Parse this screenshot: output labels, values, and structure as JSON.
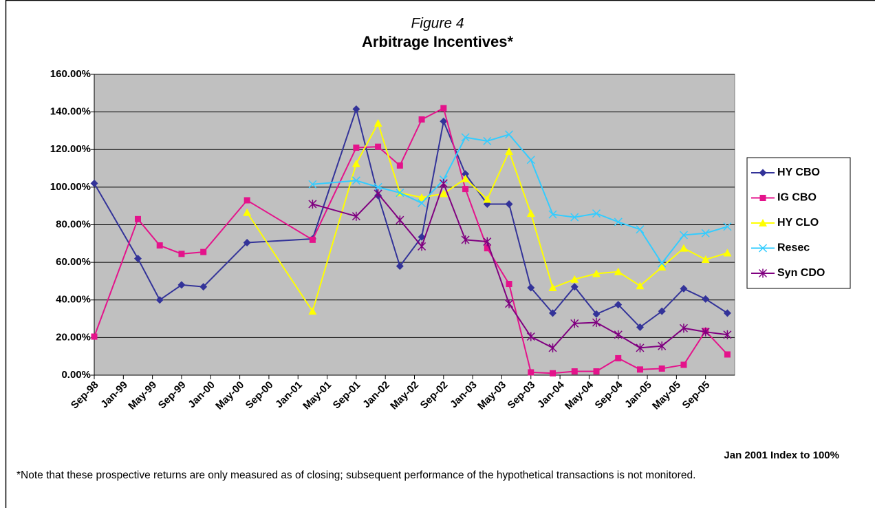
{
  "chart_data": {
    "type": "line",
    "figure_label": "Figure 4",
    "title": "Arbitrage Incentives*",
    "index_note": "Jan 2001 Index to 100%",
    "footnote": "*Note that these prospective returns are only measured as of closing; subsequent performance of the hypothetical transactions is not monitored.",
    "xlim": [
      "1998-09",
      "2006-01"
    ],
    "xticks": [
      {
        "value": "1998-09",
        "label": "Sep-98"
      },
      {
        "value": "1999-01",
        "label": "Jan-99"
      },
      {
        "value": "1999-05",
        "label": "May-99"
      },
      {
        "value": "1999-09",
        "label": "Sep-99"
      },
      {
        "value": "2000-01",
        "label": "Jan-00"
      },
      {
        "value": "2000-05",
        "label": "May-00"
      },
      {
        "value": "2000-09",
        "label": "Sep-00"
      },
      {
        "value": "2001-01",
        "label": "Jan-01"
      },
      {
        "value": "2001-05",
        "label": "May-01"
      },
      {
        "value": "2001-09",
        "label": "Sep-01"
      },
      {
        "value": "2002-01",
        "label": "Jan-02"
      },
      {
        "value": "2002-05",
        "label": "May-02"
      },
      {
        "value": "2002-09",
        "label": "Sep-02"
      },
      {
        "value": "2003-01",
        "label": "Jan-03"
      },
      {
        "value": "2003-05",
        "label": "May-03"
      },
      {
        "value": "2003-09",
        "label": "Sep-03"
      },
      {
        "value": "2004-01",
        "label": "Jan-04"
      },
      {
        "value": "2004-05",
        "label": "May-04"
      },
      {
        "value": "2004-09",
        "label": "Sep-04"
      },
      {
        "value": "2005-01",
        "label": "Jan-05"
      },
      {
        "value": "2005-05",
        "label": "May-05"
      },
      {
        "value": "2005-09",
        "label": "Sep-05"
      }
    ],
    "ylim": [
      0,
      160
    ],
    "yticks": [
      {
        "value": 0,
        "label": "0.00%"
      },
      {
        "value": 20,
        "label": "20.00%"
      },
      {
        "value": 40,
        "label": "40.00%"
      },
      {
        "value": 60,
        "label": "60.00%"
      },
      {
        "value": 80,
        "label": "80.00%"
      },
      {
        "value": 100,
        "label": "100.00%"
      },
      {
        "value": 120,
        "label": "120.00%"
      },
      {
        "value": 140,
        "label": "140.00%"
      },
      {
        "value": 160,
        "label": "160.00%"
      }
    ],
    "grid": true,
    "legend": "right",
    "series": [
      {
        "name": "HY CBO",
        "color": "#333399",
        "marker": "diamond",
        "x": [
          "1998-09",
          "1999-03",
          "1999-06",
          "1999-09",
          "1999-12",
          "2000-06",
          "2001-03",
          "2001-09",
          "2001-12",
          "2002-03",
          "2002-06",
          "2002-09",
          "2002-12",
          "2003-03",
          "2003-06",
          "2003-09",
          "2003-12",
          "2004-03",
          "2004-06",
          "2004-09",
          "2004-12",
          "2005-03",
          "2005-06",
          "2005-09",
          "2005-12"
        ],
        "values": [
          102,
          62,
          40,
          48,
          47,
          70.5,
          72.5,
          141.5,
          95.5,
          58,
          73.5,
          135,
          107,
          91,
          91,
          46.5,
          33,
          47,
          32.5,
          37.5,
          25.5,
          34,
          46,
          40.5,
          33
        ]
      },
      {
        "name": "IG CBO",
        "color": "#e4138b",
        "marker": "square",
        "x": [
          "1998-09",
          "1999-03",
          "1999-06",
          "1999-09",
          "1999-12",
          "2000-06",
          "2001-03",
          "2001-09",
          "2001-12",
          "2002-03",
          "2002-06",
          "2002-09",
          "2002-12",
          "2003-03",
          "2003-06",
          "2003-09",
          "2003-12",
          "2004-03",
          "2004-06",
          "2004-09",
          "2004-12",
          "2005-03",
          "2005-06",
          "2005-09",
          "2005-12"
        ],
        "values": [
          20.5,
          83,
          69,
          64.5,
          65.5,
          93,
          72,
          121,
          121.5,
          111.5,
          136,
          142,
          99,
          67.5,
          48.5,
          1.5,
          1,
          2,
          2,
          9,
          3,
          3.5,
          5.5,
          23.5,
          11
        ]
      },
      {
        "name": "HY CLO",
        "color": "#ffff00",
        "marker": "triangle",
        "x": [
          "2000-06",
          "2001-03",
          "2001-09",
          "2001-12",
          "2002-03",
          "2002-06",
          "2002-09",
          "2002-12",
          "2003-03",
          "2003-06",
          "2003-09",
          "2003-12",
          "2004-03",
          "2004-06",
          "2004-09",
          "2004-12",
          "2005-03",
          "2005-06",
          "2005-09",
          "2005-12"
        ],
        "values": [
          86.5,
          34,
          112.5,
          134,
          97,
          94.5,
          96.5,
          104.5,
          93.5,
          119,
          86,
          46.5,
          51,
          54,
          55,
          47.5,
          57.5,
          67.5,
          61.5,
          65
        ]
      },
      {
        "name": "Resec",
        "color": "#33ccff",
        "marker": "x",
        "x": [
          "2001-03",
          "2001-09",
          "2001-12",
          "2002-03",
          "2002-06",
          "2002-09",
          "2002-12",
          "2003-03",
          "2003-06",
          "2003-09",
          "2003-12",
          "2004-03",
          "2004-06",
          "2004-09",
          "2004-12",
          "2005-03",
          "2005-06",
          "2005-09",
          "2005-12"
        ],
        "values": [
          101.5,
          103.5,
          100,
          97,
          91.5,
          104,
          126.5,
          124.5,
          128,
          114.5,
          85.5,
          84,
          86,
          81.5,
          77.5,
          59.5,
          74.5,
          75.5,
          79
        ]
      },
      {
        "name": "Syn CDO",
        "color": "#800080",
        "marker": "star",
        "x": [
          "2001-03",
          "2001-09",
          "2001-12",
          "2002-03",
          "2002-06",
          "2002-09",
          "2002-12",
          "2003-03",
          "2003-06",
          "2003-09",
          "2003-12",
          "2004-03",
          "2004-06",
          "2004-09",
          "2004-12",
          "2005-03",
          "2005-06",
          "2005-09",
          "2005-12"
        ],
        "values": [
          91,
          84.5,
          96.5,
          82.5,
          68.5,
          102,
          72,
          71,
          38,
          20.5,
          14.5,
          27.5,
          28,
          21.5,
          14.5,
          15.5,
          25,
          23,
          21.5
        ]
      }
    ]
  }
}
